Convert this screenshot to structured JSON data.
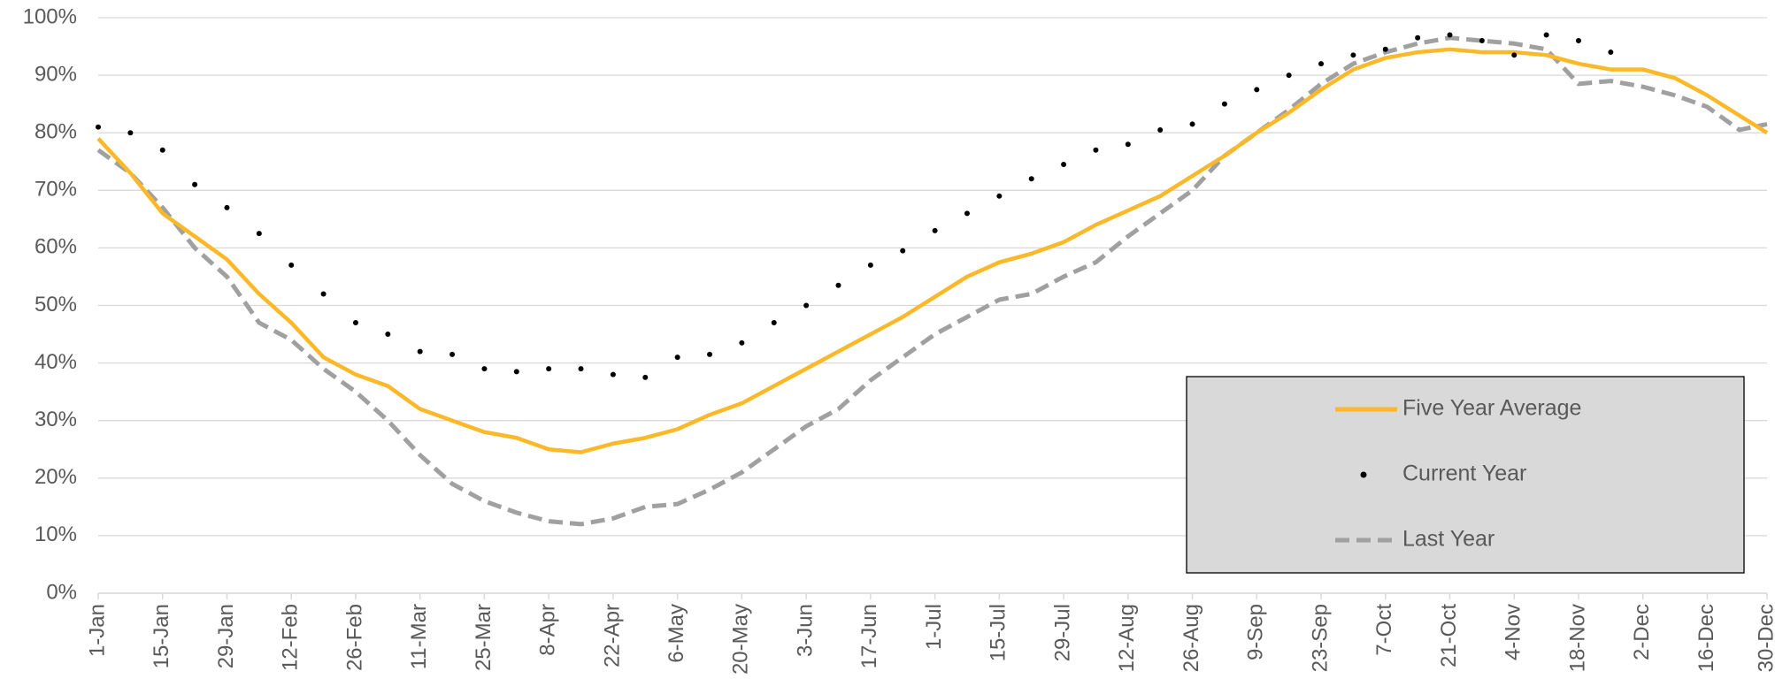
{
  "chart_data": {
    "type": "line",
    "x": [
      0,
      7,
      14,
      21,
      28,
      35,
      42,
      49,
      56,
      63,
      70,
      77,
      84,
      91,
      98,
      105,
      112,
      119,
      126,
      133,
      140,
      147,
      154,
      161,
      168,
      175,
      182,
      189,
      196,
      203,
      210,
      217,
      224,
      231,
      238,
      245,
      252,
      259,
      266,
      273,
      280,
      287,
      294,
      301,
      308,
      315,
      322,
      329,
      336,
      343,
      350,
      357,
      363
    ],
    "xlim": [
      0,
      363
    ],
    "xticks": [
      {
        "value": 0,
        "label": "1-Jan"
      },
      {
        "value": 14,
        "label": "15-Jan"
      },
      {
        "value": 28,
        "label": "29-Jan"
      },
      {
        "value": 42,
        "label": "12-Feb"
      },
      {
        "value": 56,
        "label": "26-Feb"
      },
      {
        "value": 70,
        "label": "11-Mar"
      },
      {
        "value": 84,
        "label": "25-Mar"
      },
      {
        "value": 98,
        "label": "8-Apr"
      },
      {
        "value": 112,
        "label": "22-Apr"
      },
      {
        "value": 126,
        "label": "6-May"
      },
      {
        "value": 140,
        "label": "20-May"
      },
      {
        "value": 154,
        "label": "3-Jun"
      },
      {
        "value": 168,
        "label": "17-Jun"
      },
      {
        "value": 182,
        "label": "1-Jul"
      },
      {
        "value": 196,
        "label": "15-Jul"
      },
      {
        "value": 210,
        "label": "29-Jul"
      },
      {
        "value": 224,
        "label": "12-Aug"
      },
      {
        "value": 238,
        "label": "26-Aug"
      },
      {
        "value": 252,
        "label": "9-Sep"
      },
      {
        "value": 266,
        "label": "23-Sep"
      },
      {
        "value": 280,
        "label": "7-Oct"
      },
      {
        "value": 294,
        "label": "21-Oct"
      },
      {
        "value": 308,
        "label": "4-Nov"
      },
      {
        "value": 322,
        "label": "18-Nov"
      },
      {
        "value": 336,
        "label": "2-Dec"
      },
      {
        "value": 350,
        "label": "16-Dec"
      },
      {
        "value": 363,
        "label": "30-Dec"
      }
    ],
    "ylim": [
      0,
      100
    ],
    "yticks": [
      {
        "value": 0,
        "label": "0%"
      },
      {
        "value": 10,
        "label": "10%"
      },
      {
        "value": 20,
        "label": "20%"
      },
      {
        "value": 30,
        "label": "30%"
      },
      {
        "value": 40,
        "label": "40%"
      },
      {
        "value": 50,
        "label": "50%"
      },
      {
        "value": 60,
        "label": "60%"
      },
      {
        "value": 70,
        "label": "70%"
      },
      {
        "value": 80,
        "label": "80%"
      },
      {
        "value": 90,
        "label": "90%"
      },
      {
        "value": 100,
        "label": "100%"
      }
    ],
    "grid": true,
    "legend": "lower-right",
    "series": [
      {
        "name": "Five Year Average",
        "color": "#fbb829",
        "style": "solid",
        "values": [
          79,
          73,
          66,
          62,
          58,
          52,
          47,
          41,
          38,
          36,
          32,
          30,
          28,
          27,
          25,
          24.5,
          26,
          27,
          28.5,
          31,
          33,
          36,
          39,
          42,
          45,
          48,
          51.5,
          55,
          57.5,
          59,
          61,
          64,
          66.5,
          69,
          72.5,
          76,
          80,
          83.5,
          87.5,
          91,
          93,
          94,
          94.5,
          94,
          94,
          93.5,
          92,
          91,
          91,
          89.5,
          86.5,
          83,
          80
        ]
      },
      {
        "name": "Current Year",
        "color": "#000000",
        "style": "dots",
        "values": [
          81,
          80,
          77,
          71,
          67,
          62.5,
          57,
          52,
          47,
          45,
          42,
          41.5,
          39,
          38.5,
          39,
          39,
          38,
          37.5,
          41,
          41.5,
          43.5,
          47,
          50,
          53.5,
          57,
          59.5,
          63,
          66,
          69,
          72,
          74.5,
          77,
          78,
          80.5,
          81.5,
          85,
          87.5,
          90,
          92,
          93.5,
          94.5,
          96.5,
          97,
          96,
          93.5,
          97,
          96,
          94,
          null,
          null,
          null,
          null,
          null
        ]
      },
      {
        "name": "Last Year",
        "color": "#a0a0a0",
        "style": "dashed",
        "values": [
          77,
          73,
          67,
          60,
          55,
          47,
          44,
          39,
          35,
          30,
          24,
          19,
          16,
          14,
          12.5,
          12,
          13,
          15,
          15.5,
          18,
          21,
          25,
          29,
          32,
          37,
          41,
          45,
          48,
          51,
          52,
          55,
          57.5,
          62,
          66,
          70,
          76,
          80,
          84,
          88.5,
          92,
          94,
          95.5,
          96.5,
          96,
          95.5,
          94.5,
          88.5,
          89,
          88,
          86.5,
          84.5,
          80.5,
          81.5
        ]
      }
    ]
  }
}
